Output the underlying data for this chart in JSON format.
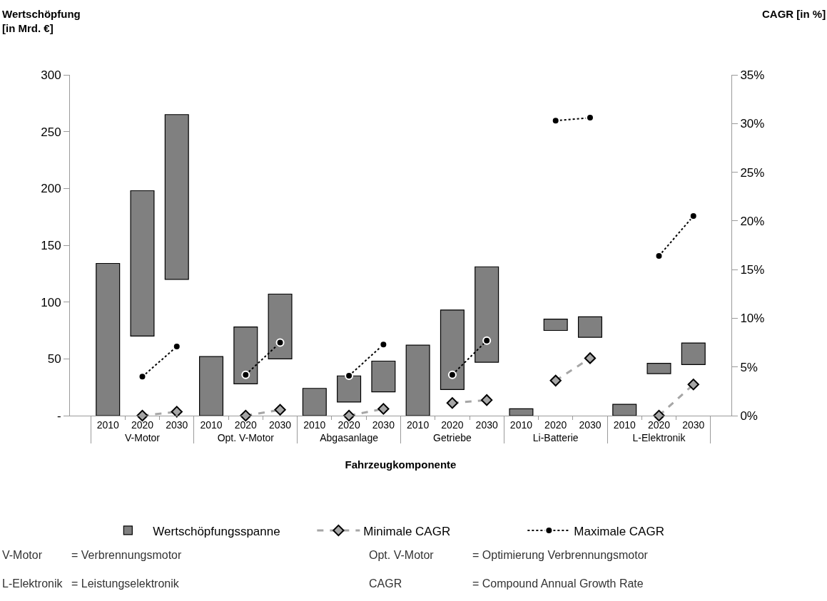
{
  "chart_data": {
    "type": "bar",
    "xlabel": "Fahrzeugkomponente",
    "ylabel": "Wertschöpfung\n[in Mrd. €]",
    "y2label": "CAGR [in %]",
    "categories": [
      "2010",
      "2020",
      "2030",
      "2010",
      "2020",
      "2030",
      "2010",
      "2020",
      "2030",
      "2010",
      "2020",
      "2030",
      "2010",
      "2020",
      "2030",
      "2010",
      "2020",
      "2030"
    ],
    "series": [
      {
        "name": "Wertschöpfungsspanne",
        "color": "#808080",
        "values": [
          134,
          128,
          145,
          52,
          50,
          57,
          24,
          23,
          27,
          62,
          70,
          84,
          6,
          10,
          18,
          10,
          9,
          19
        ],
        "base": [
          0,
          70,
          120,
          0,
          28,
          50,
          0,
          12,
          21,
          0,
          23,
          47,
          0,
          75,
          69,
          0,
          37,
          45
        ]
      },
      {
        "name": "Minimale CAGR",
        "type": "line",
        "axis": "y2",
        "color": "#a6a6a6",
        "marker": "diamond",
        "line_style": "dashed",
        "values": [
          null,
          0,
          0.4,
          null,
          0,
          0.6,
          null,
          0,
          0.7,
          null,
          1.3,
          1.6,
          null,
          3.6,
          5.9,
          null,
          0,
          3.2
        ]
      },
      {
        "name": "Maximale CAGR",
        "type": "line",
        "axis": "y2",
        "color": "#000000",
        "marker": "circle",
        "line_style": "dotted",
        "values": [
          null,
          4.0,
          7.1,
          null,
          4.2,
          7.5,
          null,
          4.1,
          7.3,
          null,
          4.2,
          7.7,
          null,
          30.3,
          30.6,
          null,
          16.4,
          20.5
        ]
      }
    ],
    "ylim": [
      0,
      300
    ],
    "yticks": [
      {
        "value": 0,
        "label": "-"
      },
      50,
      100,
      150,
      200,
      250,
      300
    ],
    "y2lim": [
      0,
      35
    ],
    "y2ticks": [
      {
        "value": 0,
        "label": "0%"
      },
      {
        "value": 5,
        "label": "5%"
      },
      {
        "value": 10,
        "label": "10%"
      },
      {
        "value": 15,
        "label": "15%"
      },
      {
        "value": 20,
        "label": "20%"
      },
      {
        "value": 25,
        "label": "25%"
      },
      {
        "value": 30,
        "label": "30%"
      },
      {
        "value": 35,
        "label": "35%"
      }
    ],
    "legend": "bottom",
    "annotations": [
      "V-Motor",
      "Opt. V-Motor",
      "Abgasanlage",
      "Getriebe",
      "Li-Batterie",
      "L-Elektronik",
      "V-Motor",
      "= Verbrennungsmotor",
      "Opt. V-Motor",
      "= Optimierung Verbrennungsmotor",
      "L-Elektronik",
      "= Leistungselektronik",
      "CAGR",
      "= Compound Annual Growth Rate"
    ]
  }
}
